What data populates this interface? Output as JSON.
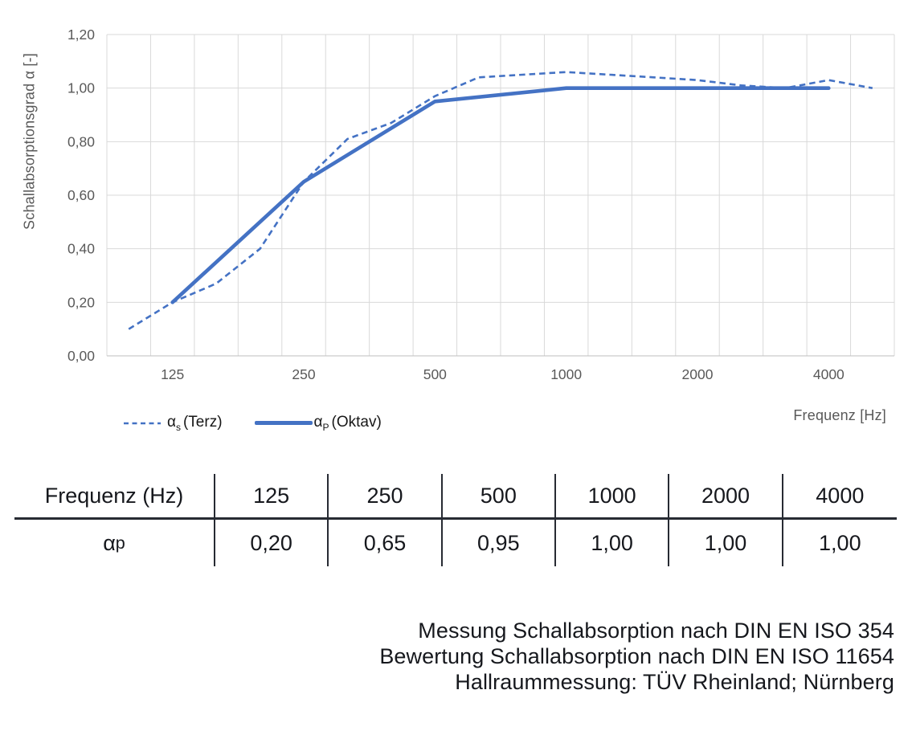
{
  "chart_data": {
    "type": "line",
    "title": "",
    "y_axis_label": "Schallabsorptionsgrad α [-]",
    "x_axis_label": "Frequenz [Hz]",
    "ylim": [
      0,
      1.2
    ],
    "y_tick_step": 0.2,
    "y_ticks": [
      "0,00",
      "0,20",
      "0,40",
      "0,60",
      "0,80",
      "1,00",
      "1,20"
    ],
    "x_scale": "third-octave categories (log spacing)",
    "x_categories": [
      100,
      125,
      160,
      200,
      250,
      315,
      400,
      500,
      630,
      800,
      1000,
      1250,
      1600,
      2000,
      2500,
      3150,
      4000,
      5000
    ],
    "x_tick_labels": [
      125,
      250,
      500,
      1000,
      2000,
      4000
    ],
    "grid": true,
    "legend_position": "bottom-left",
    "series": [
      {
        "name": "αs (Terz)",
        "style": "dashed",
        "x": [
          100,
          125,
          160,
          200,
          250,
          315,
          400,
          500,
          630,
          800,
          1000,
          1250,
          1600,
          2000,
          2500,
          3150,
          4000,
          5000
        ],
        "values": [
          0.1,
          0.2,
          0.27,
          0.4,
          0.65,
          0.81,
          0.87,
          0.97,
          1.04,
          1.05,
          1.06,
          1.05,
          1.04,
          1.03,
          1.01,
          1.0,
          1.03,
          1.0
        ]
      },
      {
        "name": "αP (Oktav)",
        "style": "solid",
        "x": [
          125,
          250,
          500,
          1000,
          2000,
          4000
        ],
        "values": [
          0.2,
          0.65,
          0.95,
          1.0,
          1.0,
          1.0
        ]
      }
    ],
    "colors": {
      "line": "#4472C4",
      "grid": "#D9D9D9",
      "axis": "#BFBFBF",
      "tick_text": "#595959"
    }
  },
  "legend": {
    "items": [
      {
        "symbol": "α",
        "sub": "s",
        "label": "(Terz)"
      },
      {
        "symbol": "α",
        "sub": "P",
        "label": "(Oktav)"
      }
    ]
  },
  "table": {
    "header_label": "Frequenz (Hz)",
    "row_label_symbol": "α",
    "row_label_sub": "p",
    "frequencies": [
      "125",
      "250",
      "500",
      "1000",
      "2000",
      "4000"
    ],
    "values": [
      "0,20",
      "0,65",
      "0,95",
      "1,00",
      "1,00",
      "1,00"
    ]
  },
  "footer": {
    "lines": [
      "Messung Schallabsorption nach DIN EN ISO 354",
      "Bewertung Schallabsorption nach DIN EN ISO 11654",
      "Hallraummessung: TÜV Rheinland; Nürnberg"
    ]
  }
}
